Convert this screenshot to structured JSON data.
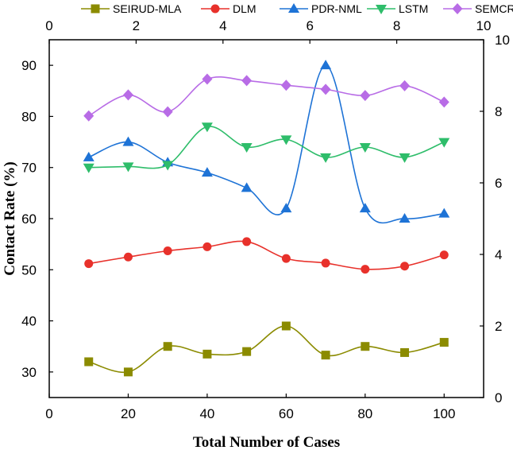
{
  "chart_data": {
    "type": "line",
    "title": "",
    "xlabel": "Total Number of Cases",
    "ylabel": "Contact Rate (%)",
    "xlim": [
      0,
      110
    ],
    "ylim": [
      25,
      95
    ],
    "x_ticks": [
      0,
      20,
      40,
      60,
      80,
      100
    ],
    "y_ticks": [
      30,
      40,
      50,
      60,
      70,
      80,
      90
    ],
    "secondary_x": {
      "range": [
        0,
        10
      ],
      "ticks": [
        0,
        2,
        4,
        6,
        8,
        10
      ]
    },
    "secondary_y": {
      "range": [
        0,
        10
      ],
      "ticks": [
        0,
        2,
        4,
        6,
        8,
        10
      ]
    },
    "grid": false,
    "legend_position": "top",
    "x": [
      10,
      20,
      30,
      40,
      50,
      60,
      70,
      80,
      90,
      100
    ],
    "series": [
      {
        "name": "SEIRUD-MLA",
        "color": "#8b8b00",
        "marker": "square",
        "values": [
          32,
          30,
          35,
          33.5,
          34,
          39,
          33.3,
          35,
          33.8,
          35.8
        ]
      },
      {
        "name": "DLM",
        "color": "#e8312b",
        "marker": "circle",
        "values": [
          51.2,
          52.5,
          53.7,
          54.5,
          55.5,
          52.2,
          51.3,
          50.1,
          50.7,
          52.9
        ]
      },
      {
        "name": "PDR-NML",
        "color": "#1e73d6",
        "marker": "triangle-up",
        "values": [
          72,
          75,
          71,
          69,
          66,
          62,
          90,
          62,
          60,
          61
        ]
      },
      {
        "name": "LSTM",
        "color": "#2ebd6a",
        "marker": "triangle-down",
        "values": [
          70,
          70.2,
          70.5,
          78,
          74,
          75.5,
          72,
          74,
          72,
          75
        ]
      },
      {
        "name": "SEMCR",
        "color": "#b86ce6",
        "marker": "diamond",
        "values": [
          80.1,
          84.2,
          80.9,
          87.3,
          87,
          86.1,
          85.3,
          84.1,
          86,
          82.8
        ]
      }
    ]
  }
}
